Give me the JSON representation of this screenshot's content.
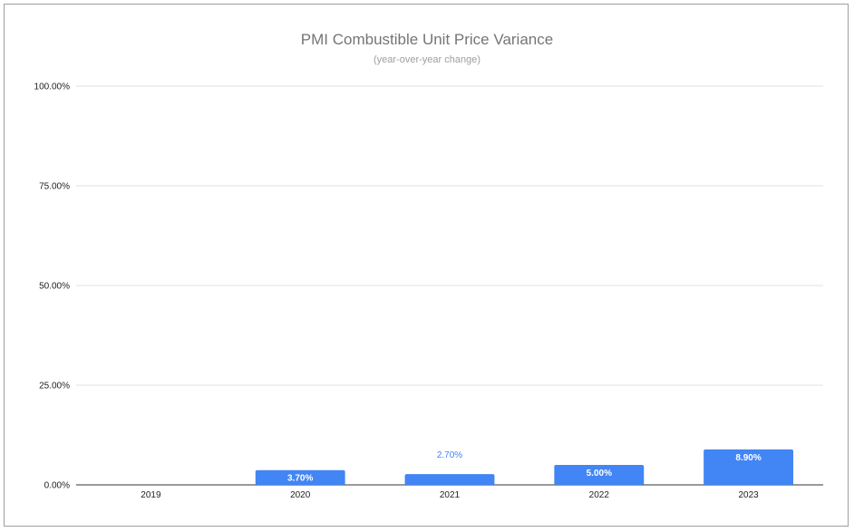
{
  "chart_data": {
    "type": "bar",
    "title": "PMI Combustible Unit Price Variance",
    "subtitle": "(year-over-year change)",
    "xlabel": "",
    "ylabel": "",
    "categories": [
      "2019",
      "2020",
      "2021",
      "2022",
      "2023"
    ],
    "values": [
      0,
      3.7,
      2.7,
      5.0,
      8.9
    ],
    "data_labels": [
      "",
      "3.70%",
      "2.70%",
      "5.00%",
      "8.90%"
    ],
    "ylim": [
      0,
      100
    ],
    "yticks": [
      0,
      25,
      50,
      75,
      100
    ],
    "ytick_labels": [
      "0.00%",
      "25.00%",
      "50.00%",
      "75.00%",
      "100.00%"
    ],
    "grid": true,
    "legend": "none",
    "bar_color": "#4285f4"
  }
}
